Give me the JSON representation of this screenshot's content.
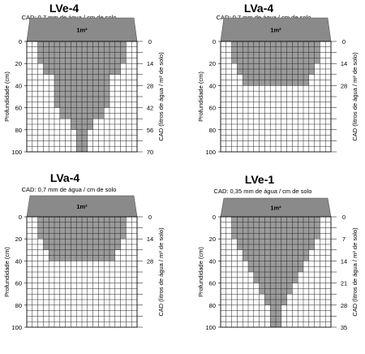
{
  "panels": [
    {
      "title": "LVe-4",
      "subtitle": "CAD: 0,7 mm de água / cm de solo",
      "area_label": "1m²",
      "left_axis_label": "Profundidade (cm)",
      "right_axis_label": "CAD (litros de água / m² de solo)",
      "depth_ticks": [
        "0",
        "20",
        "40",
        "60",
        "80",
        "100"
      ],
      "cad_ticks": [
        "0",
        "14",
        "28",
        "42",
        "56",
        "70"
      ],
      "profile_widths": [
        16,
        16,
        16,
        16,
        14,
        14,
        10,
        10,
        10,
        10,
        10,
        10,
        8,
        8,
        4,
        4,
        2,
        2,
        2,
        2
      ]
    },
    {
      "title": "LVa-4",
      "subtitle": "CAD: 0,7 mm de água / cm de solo",
      "area_label": "1m²",
      "left_axis_label": "Profundidade (cm)",
      "right_axis_label": "CAD (litros de água / m² de solo)",
      "depth_ticks": [
        "0",
        "20",
        "40",
        "60",
        "80",
        "100"
      ],
      "cad_ticks": [
        "0",
        "14",
        "28"
      ],
      "profile_widths": [
        16,
        16,
        16,
        16,
        14,
        14,
        12,
        12,
        0,
        0,
        0,
        0,
        0,
        0,
        0,
        0,
        0,
        0,
        0,
        0
      ]
    },
    {
      "title": "LVa-4",
      "subtitle": "CAD: 0,7 mm de água / cm de solo",
      "area_label": "1m²",
      "left_axis_label": "Profundidade (cm)",
      "right_axis_label": "CAD (litros de água / m² de solo)",
      "depth_ticks": [
        "0",
        "20",
        "40",
        "60",
        "80",
        "100"
      ],
      "cad_ticks": [
        "0",
        "14",
        "28"
      ],
      "profile_widths": [
        16,
        16,
        16,
        16,
        14,
        14,
        12,
        12,
        0,
        0,
        0,
        0,
        0,
        0,
        0,
        0,
        0,
        0,
        0,
        0
      ]
    },
    {
      "title": "LVe-1",
      "subtitle": "CAD: 0,35 mm de água / cm de solo",
      "area_label": "1m²",
      "left_axis_label": "Profundidade (cm)",
      "right_axis_label": "CAD (litros de água / m² de solo)",
      "depth_ticks": [
        "0",
        "20",
        "40",
        "60",
        "80",
        "100"
      ],
      "cad_ticks": [
        "0",
        "7",
        "14",
        "21",
        "28",
        "35"
      ],
      "profile_widths": [
        16,
        16,
        16,
        16,
        14,
        14,
        12,
        12,
        10,
        10,
        8,
        8,
        6,
        6,
        4,
        4,
        2,
        2,
        2,
        2
      ]
    }
  ]
}
